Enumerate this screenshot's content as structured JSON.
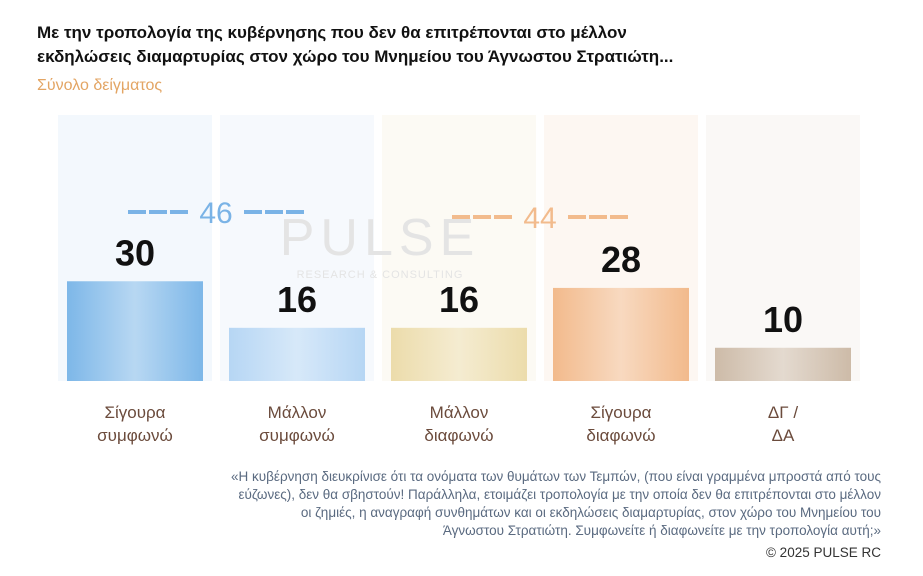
{
  "chart_data": {
    "type": "bar",
    "title": [
      "Με την τροπολογία της κυβέρνησης που δεν θα επιτρέπονται στο μέλλον",
      "εκδηλώσεις διαμαρτυρίας στον χώρο του Μνημείου του Άγνωστου Στρατιώτη..."
    ],
    "subtitle": "Σύνολο δείγματος",
    "categories": [
      [
        "Σίγουρα",
        "συμφωνώ"
      ],
      [
        "Μάλλον",
        "συμφωνώ"
      ],
      [
        "Μάλλον",
        "διαφωνώ"
      ],
      [
        "Σίγουρα",
        "διαφωνώ"
      ],
      [
        "ΔΓ /",
        "ΔΑ"
      ]
    ],
    "values": [
      30,
      16,
      16,
      28,
      10
    ],
    "colors": [
      "#7db7e8",
      "#b6d6f4",
      "#ecdcab",
      "#f2ba8c",
      "#cdbba8"
    ],
    "panel_colors": [
      "#f3f8fd",
      "#f6f9fd",
      "#fcfaf4",
      "#fdf7f2",
      "#faf8f6"
    ],
    "ylim": [
      0,
      80
    ],
    "group_totals": [
      {
        "value": 46,
        "color": "#7ab3e6"
      },
      {
        "value": 44,
        "color": "#f2bb8d"
      }
    ],
    "watermark": [
      "PULSE",
      "RESEARCH & CONSULTING"
    ],
    "note": [
      "«Η κυβέρνηση διευκρίνισε ότι τα ονόματα των θυμάτων των Τεμπών, (που είναι γραμμένα μπροστά από τους",
      "εύζωνες), δεν θα σβηστούν! Παράλληλα, ετοιμάζει τροπολογία με την οποία δεν θα επιτρέπονται στο μέλλον",
      "οι ζημιές, η αναγραφή συνθημάτων και οι εκδηλώσεις διαμαρτυρίας, στον χώρο του Μνημείου του",
      "Άγνωστου Στρατιώτη. Συμφωνείτε ή διαφωνείτε με την τροπολογία αυτή;»"
    ],
    "credit": "©  2025  PULSE RC"
  }
}
